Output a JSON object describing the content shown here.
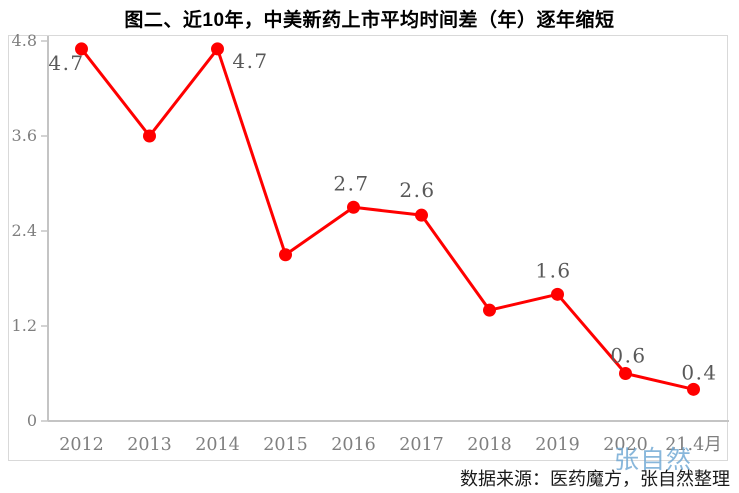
{
  "chart_data": {
    "type": "line",
    "title": "图二、近10年，中美新药上市平均时间差（年）逐年缩短",
    "categories": [
      "2012",
      "2013",
      "2014",
      "2015",
      "2016",
      "2017",
      "2018",
      "2019",
      "2020",
      "21.4月"
    ],
    "values": [
      4.7,
      3.6,
      4.7,
      2.1,
      2.7,
      2.6,
      1.4,
      1.6,
      0.6,
      0.4
    ],
    "point_labels": {
      "0": "4.7",
      "2": "4.7",
      "4": "2.7",
      "5": "2.6",
      "7": "1.6",
      "8": "0.6",
      "9": "0.4"
    },
    "yticks": [
      0,
      1.2,
      2.4,
      3.6,
      4.8
    ],
    "ylim": [
      0,
      4.8
    ],
    "xlabel": "",
    "ylabel": "",
    "grid": false,
    "legend": "none",
    "line_color": "#ff0000",
    "marker_color": "#ff0000",
    "point_label_color": "#595959",
    "axis_color": "#c4c4c4",
    "tick_label_color": "#7f7f7f"
  },
  "source_note": "数据来源：医药魔方，张自然整理",
  "watermark": "张自然"
}
